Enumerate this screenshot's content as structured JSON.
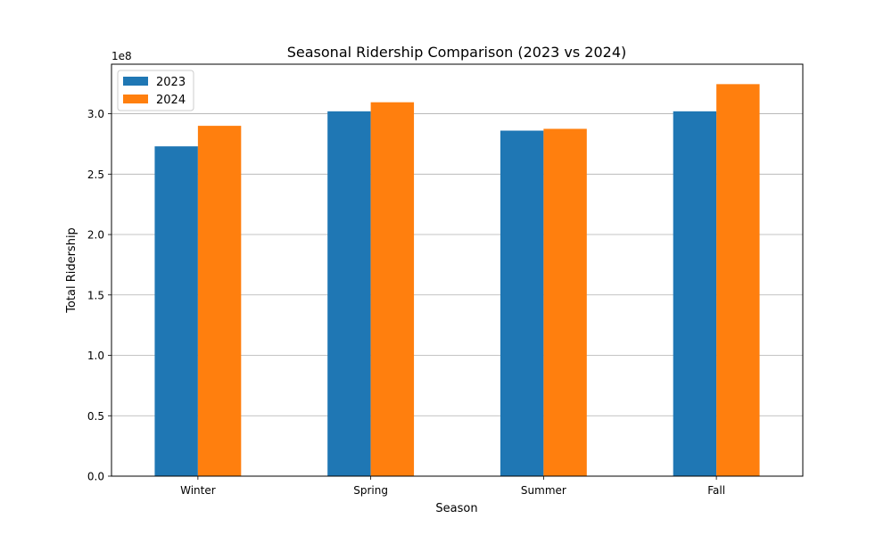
{
  "chart_data": {
    "type": "bar",
    "title": "Seasonal Ridership Comparison (2023 vs 2024)",
    "xlabel": "Season",
    "ylabel": "Total Ridership",
    "y_multiplier_label": "1e8",
    "categories": [
      "Winter",
      "Spring",
      "Summer",
      "Fall"
    ],
    "series": [
      {
        "name": "2023",
        "color": "#1f77b4",
        "values": [
          273000000,
          302000000,
          286000000,
          302000000
        ]
      },
      {
        "name": "2024",
        "color": "#ff7f0e",
        "values": [
          290000000,
          309500000,
          287500000,
          324500000
        ]
      }
    ],
    "ylim": [
      0,
      341000000
    ],
    "yticks": [
      0,
      50000000,
      100000000,
      150000000,
      200000000,
      250000000,
      300000000
    ],
    "ytick_labels": [
      "0.0",
      "0.5",
      "1.0",
      "1.5",
      "2.0",
      "2.5",
      "3.0"
    ],
    "grid": "horizontal",
    "legend_position": "top-left"
  }
}
